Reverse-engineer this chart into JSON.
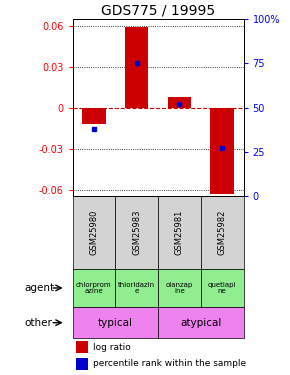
{
  "title": "GDS775 / 19995",
  "samples": [
    "GSM25980",
    "GSM25983",
    "GSM25981",
    "GSM25982"
  ],
  "log_ratios": [
    -0.012,
    0.059,
    0.008,
    -0.063
  ],
  "percentile_ranks": [
    38,
    75,
    52,
    27
  ],
  "agents": [
    "chlorprom\nazine",
    "thioridazin\ne",
    "olanzap\nine",
    "quetiapi\nne"
  ],
  "ylim": [
    -0.065,
    0.065
  ],
  "yticks_left": [
    -0.06,
    -0.03,
    0.0,
    0.03,
    0.06
  ],
  "yticks_right": [
    0,
    25,
    50,
    75,
    100
  ],
  "bar_color": "#cc0000",
  "dot_color": "#0000cc",
  "zero_line_color": "#cc0000",
  "title_fontsize": 10,
  "tick_fontsize": 7,
  "agent_color": "#90EE90",
  "typical_color": "#EE82EE",
  "sample_bg": "#d3d3d3"
}
